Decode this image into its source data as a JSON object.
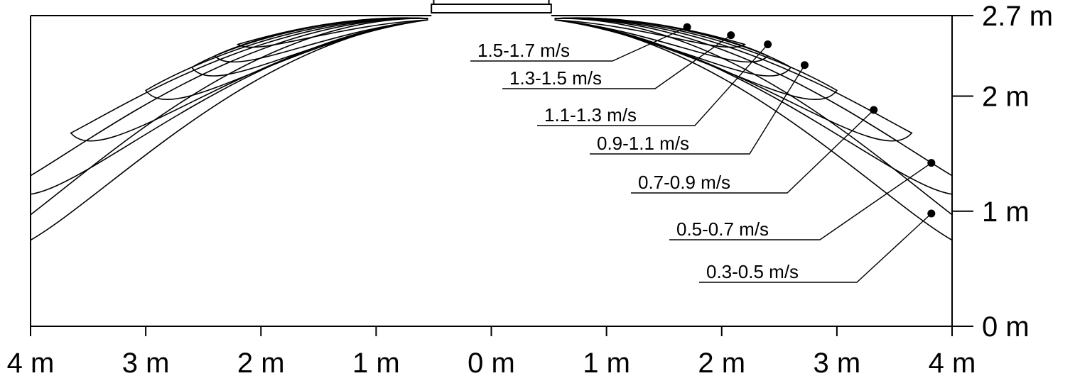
{
  "chart_data": {
    "type": "contour",
    "title": "",
    "xlabel": "",
    "ylabel": "",
    "xlim": [
      -4,
      4
    ],
    "ylim": [
      0,
      2.7
    ],
    "x_ticks": [
      {
        "value": -4,
        "label": "4 m"
      },
      {
        "value": -3,
        "label": "3 m"
      },
      {
        "value": -2,
        "label": "2 m"
      },
      {
        "value": -1,
        "label": "1 m"
      },
      {
        "value": 0,
        "label": "0 m"
      },
      {
        "value": 1,
        "label": "1 m"
      },
      {
        "value": 2,
        "label": "2 m"
      },
      {
        "value": 3,
        "label": "3 m"
      },
      {
        "value": 4,
        "label": "4 m"
      }
    ],
    "y_ticks": [
      {
        "value": 0,
        "label": "0 m"
      },
      {
        "value": 1,
        "label": "1 m"
      },
      {
        "value": 2,
        "label": "2 m"
      },
      {
        "value": 2.7,
        "label": "2.7 m"
      }
    ],
    "outlet": {
      "x_from": -0.5,
      "x_to": 0.5,
      "y": 2.7
    },
    "bands": [
      {
        "label": "1.5-1.7 m/s",
        "marker": {
          "x": 1.7,
          "y": 2.6
        },
        "tip_x": 2.2,
        "tip_y": 2.45,
        "spread": 0.12
      },
      {
        "label": "1.3-1.5 m/s",
        "marker": {
          "x": 2.08,
          "y": 2.53
        },
        "tip_x": 2.4,
        "tip_y": 2.35,
        "spread": 0.22
      },
      {
        "label": "1.1-1.3 m/s",
        "marker": {
          "x": 2.4,
          "y": 2.45
        },
        "tip_x": 2.6,
        "tip_y": 2.25,
        "spread": 0.3
      },
      {
        "label": "0.9-1.1 m/s",
        "marker": {
          "x": 2.72,
          "y": 2.27
        },
        "tip_x": 3.0,
        "tip_y": 2.05,
        "spread": 0.36
      },
      {
        "label": "0.7-0.9 m/s",
        "marker": {
          "x": 3.32,
          "y": 1.88
        },
        "tip_x": 3.65,
        "tip_y": 1.68,
        "spread": 0.4
      },
      {
        "label": "0.5-0.7 m/s",
        "marker": {
          "x": 3.82,
          "y": 1.42
        },
        "tip_x": 4.2,
        "tip_y": 1.2,
        "spread": 0.42
      },
      {
        "label": "0.3-0.5 m/s",
        "marker": {
          "x": 3.82,
          "y": 0.98
        },
        "tip_x": 4.4,
        "tip_y": 0.7,
        "spread": 0.45
      }
    ],
    "grid": false,
    "legend": "none"
  }
}
